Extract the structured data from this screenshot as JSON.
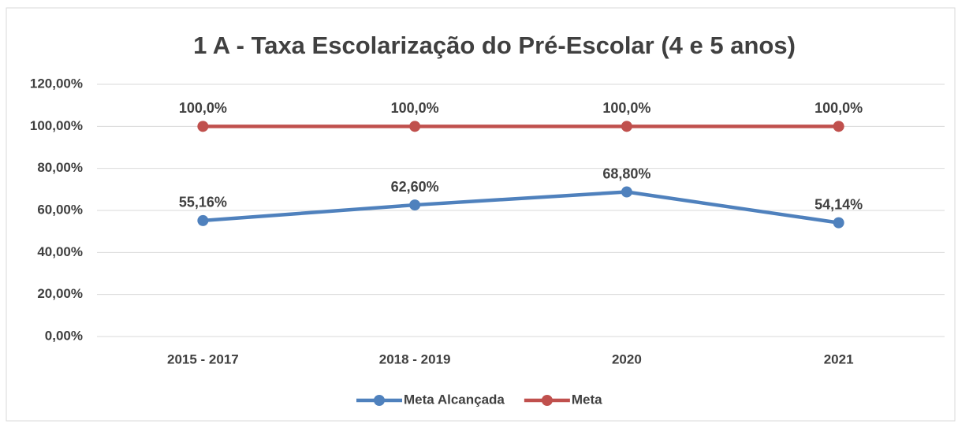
{
  "chart_data": {
    "type": "line",
    "title": "1 A - Taxa Escolarização do Pré-Escolar (4 e 5 anos)",
    "categories": [
      "2015 - 2017",
      "2018 - 2019",
      "2020",
      "2021"
    ],
    "series": [
      {
        "name": "Meta Alcançada",
        "color": "#4f81bd",
        "values": [
          55.16,
          62.6,
          68.8,
          54.14
        ],
        "value_labels": [
          "55,16%",
          "62,60%",
          "68,80%",
          "54,14%"
        ]
      },
      {
        "name": "Meta",
        "color": "#c0504d",
        "values": [
          100,
          100,
          100,
          100
        ],
        "value_labels": [
          "100,0%",
          "100,0%",
          "100,0%",
          "100,0%"
        ]
      }
    ],
    "ylim": [
      0,
      120
    ],
    "yticks": [
      {
        "value": 0,
        "label": "0,00%"
      },
      {
        "value": 20,
        "label": "20,00%"
      },
      {
        "value": 40,
        "label": "40,00%"
      },
      {
        "value": 60,
        "label": "60,00%"
      },
      {
        "value": 80,
        "label": "80,00%"
      },
      {
        "value": 100,
        "label": "100,00%"
      },
      {
        "value": 120,
        "label": "120,00%"
      }
    ],
    "grid": true,
    "legend": "bottom"
  }
}
